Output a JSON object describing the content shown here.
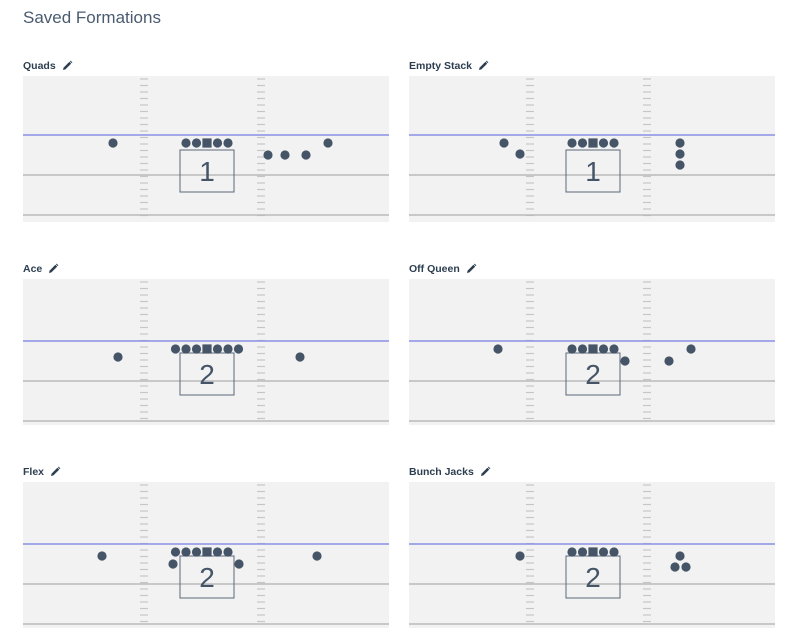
{
  "page": {
    "title": "Saved Formations"
  },
  "colors": {
    "player": "#455467",
    "line_of_scrimmage": "#8a8fe6",
    "yard_line": "#b9b9b9",
    "hash": "#c6c6c6",
    "field_bg": "#f2f2f2",
    "box_stroke": "#5a6878"
  },
  "edit_icon": "pencil-icon",
  "formations": [
    {
      "name": "Quads",
      "personnel": "1"
    },
    {
      "name": "Empty Stack",
      "personnel": "1"
    },
    {
      "name": "Ace",
      "personnel": "2"
    },
    {
      "name": "Off Queen",
      "personnel": "2"
    },
    {
      "name": "Flex",
      "personnel": "2"
    },
    {
      "name": "Bunch Jacks",
      "personnel": "2"
    }
  ]
}
